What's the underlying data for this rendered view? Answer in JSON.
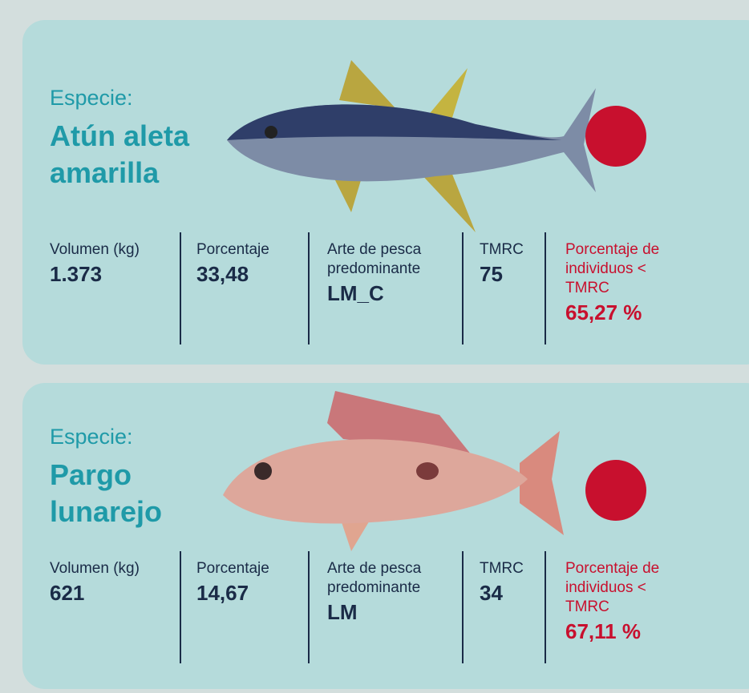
{
  "cards": [
    {
      "label": "Especie:",
      "name": "Atún aleta amarilla",
      "stats": [
        {
          "label": "Volumen (kg)",
          "value": "1.373"
        },
        {
          "label": "Porcentaje",
          "value": "33,48"
        },
        {
          "label": "Arte de pesca predominante",
          "value": "LM_C"
        },
        {
          "label": "TMRC",
          "value": "75"
        },
        {
          "label": "Porcentaje de individuos < TMRC",
          "value": "65,27 %"
        }
      ]
    },
    {
      "label": "Especie:",
      "name": "Pargo lunarejo",
      "stats": [
        {
          "label": "Volumen (kg)",
          "value": "621"
        },
        {
          "label": "Porcentaje",
          "value": "14,67"
        },
        {
          "label": "Arte de pesca predominante",
          "value": "LM"
        },
        {
          "label": "TMRC",
          "value": "34"
        },
        {
          "label": "Porcentaje de individuos < TMRC",
          "value": "67,11 %"
        }
      ]
    }
  ]
}
